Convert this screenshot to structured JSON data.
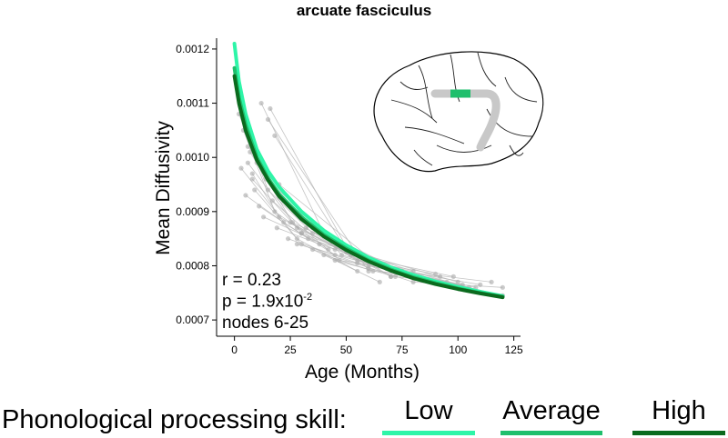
{
  "chart_data": {
    "type": "line",
    "title": "arcuate fasciculus",
    "xlabel": "Age (Months)",
    "ylabel": "Mean Diffusivity",
    "xlim": [
      -8,
      128
    ],
    "ylim": [
      0.00067,
      0.00122
    ],
    "x_ticks": [
      0,
      25,
      50,
      75,
      100,
      125
    ],
    "y_ticks": [
      0.0007,
      0.0008,
      0.0009,
      0.001,
      0.0011,
      0.0012
    ],
    "y_tick_labels": [
      "0.0007",
      "0.0008",
      "0.0009",
      "0.0010",
      "0.0011",
      "0.0012"
    ],
    "annotations": {
      "r": "r  = 0.23",
      "p_prefix": "p = 1.9x10",
      "p_exponent": "-2",
      "nodes": "nodes 6-25"
    },
    "series": [
      {
        "name": "Low",
        "color": "#2ef5a8",
        "x": [
          0,
          2,
          5,
          10,
          15,
          20,
          30,
          40,
          50,
          60,
          70,
          80,
          90,
          100,
          110,
          120
        ],
        "values": [
          0.00121,
          0.00114,
          0.00108,
          0.001015,
          0.000975,
          0.000945,
          0.0009,
          0.000865,
          0.000838,
          0.000815,
          0.000797,
          0.000783,
          0.000771,
          0.000761,
          0.000752,
          0.000744
        ]
      },
      {
        "name": "Average",
        "color": "#1fbf6c",
        "x": [
          0,
          2,
          5,
          10,
          15,
          20,
          30,
          40,
          50,
          60,
          70,
          80,
          90,
          100,
          110,
          120
        ],
        "values": [
          0.001165,
          0.00111,
          0.00106,
          0.001,
          0.000962,
          0.000932,
          0.00089,
          0.000857,
          0.000832,
          0.00081,
          0.000793,
          0.000779,
          0.000768,
          0.000758,
          0.00075,
          0.000743
        ]
      },
      {
        "name": "High",
        "color": "#0b6a1e",
        "x": [
          0,
          2,
          5,
          10,
          15,
          20,
          30,
          40,
          50,
          60,
          70,
          80,
          90,
          100,
          110,
          120
        ],
        "values": [
          0.00115,
          0.0011,
          0.00105,
          0.000995,
          0.000958,
          0.000928,
          0.000886,
          0.000854,
          0.000829,
          0.000808,
          0.000791,
          0.000777,
          0.000766,
          0.000757,
          0.000749,
          0.000742
        ]
      }
    ],
    "subject_trajectories": [
      {
        "x": [
          3,
          28,
          55
        ],
        "values": [
          0.00098,
          0.00085,
          0.00079
        ]
      },
      {
        "x": [
          6,
          35,
          70
        ],
        "values": [
          0.00102,
          0.00087,
          0.00078
        ]
      },
      {
        "x": [
          8,
          20,
          60,
          95
        ],
        "values": [
          0.00097,
          0.00089,
          0.0008,
          0.00077
        ]
      },
      {
        "x": [
          10,
          48,
          85
        ],
        "values": [
          0.00099,
          0.00082,
          0.000775
        ]
      },
      {
        "x": [
          12,
          40,
          75,
          110
        ],
        "values": [
          0.0011,
          0.00086,
          0.00079,
          0.000765
        ]
      },
      {
        "x": [
          15,
          60
        ],
        "values": [
          0.00107,
          0.00079
        ]
      },
      {
        "x": [
          18,
          50,
          100
        ],
        "values": [
          0.00104,
          0.00083,
          0.00077
        ]
      },
      {
        "x": [
          5,
          22,
          45
        ],
        "values": [
          0.00093,
          0.00088,
          0.00082
        ]
      },
      {
        "x": [
          9,
          30,
          65
        ],
        "values": [
          0.00094,
          0.00084,
          0.00077
        ]
      },
      {
        "x": [
          14,
          55,
          90
        ],
        "values": [
          0.00096,
          0.00081,
          0.000785
        ]
      },
      {
        "x": [
          20,
          65,
          120
        ],
        "values": [
          0.00095,
          0.0008,
          0.000745
        ]
      },
      {
        "x": [
          25,
          70
        ],
        "values": [
          0.00088,
          0.00078
        ]
      },
      {
        "x": [
          4,
          18,
          42
        ],
        "values": [
          0.00105,
          0.0009,
          0.00083
        ]
      },
      {
        "x": [
          11,
          33,
          80
        ],
        "values": [
          0.00091,
          0.00085,
          0.00079
        ]
      },
      {
        "x": [
          16,
          52,
          105
        ],
        "values": [
          0.00109,
          0.00082,
          0.00076
        ]
      },
      {
        "x": [
          22,
          58,
          98
        ],
        "values": [
          0.00092,
          0.000815,
          0.00078
        ]
      },
      {
        "x": [
          7,
          26,
          62
        ],
        "values": [
          0.00101,
          0.00088,
          0.00081
        ]
      },
      {
        "x": [
          30,
          75,
          115
        ],
        "values": [
          0.00086,
          0.00079,
          0.00077
        ]
      },
      {
        "x": [
          13,
          45
        ],
        "values": [
          0.00089,
          0.00083
        ]
      },
      {
        "x": [
          19,
          38,
          85
        ],
        "values": [
          0.00087,
          0.00084,
          0.000775
        ]
      },
      {
        "x": [
          2,
          15,
          35
        ],
        "values": [
          0.00108,
          0.00094,
          0.00086
        ]
      },
      {
        "x": [
          28,
          68,
          108
        ],
        "values": [
          0.00084,
          0.000795,
          0.00076
        ]
      },
      {
        "x": [
          35,
          80,
          120
        ],
        "values": [
          0.00083,
          0.00077,
          0.00076
        ]
      },
      {
        "x": [
          40,
          62,
          92
        ],
        "values": [
          0.00082,
          0.00079,
          0.00078
        ]
      },
      {
        "x": [
          17,
          47,
          70
        ],
        "values": [
          0.00092,
          0.00081,
          0.000795
        ]
      },
      {
        "x": [
          24,
          55,
          82
        ],
        "values": [
          0.00085,
          0.000805,
          0.00078
        ]
      },
      {
        "x": [
          6,
          30
        ],
        "values": [
          0.00099,
          0.00086
        ]
      },
      {
        "x": [
          45,
          72,
          102
        ],
        "values": [
          0.00081,
          0.00078,
          0.000765
        ]
      },
      {
        "x": [
          32,
          60,
          88
        ],
        "values": [
          0.00087,
          0.000795,
          0.00077
        ]
      },
      {
        "x": [
          8,
          28,
          50
        ],
        "values": [
          0.00096,
          0.00087,
          0.000825
        ]
      }
    ],
    "grid": false,
    "legend_position": "bottom"
  },
  "legend": {
    "label": "Phonological processing skill:",
    "items": [
      {
        "name": "Low",
        "color": "#2ef5a8"
      },
      {
        "name": "Average",
        "color": "#1fbf6c"
      },
      {
        "name": "High",
        "color": "#0b6a1e"
      }
    ]
  },
  "inset": {
    "brain_fill": "#ffffff",
    "tract_color": "#c8c8c8",
    "tract_highlight": "#1fbf6c"
  }
}
